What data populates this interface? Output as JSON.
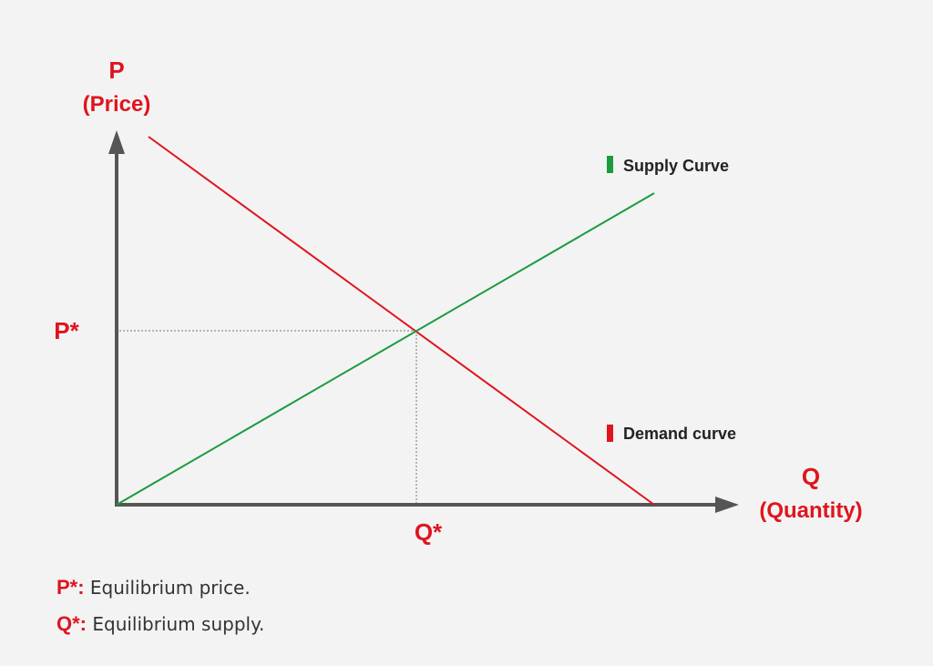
{
  "colors": {
    "accent_red": "#e0141e",
    "supply_green": "#1a9c3e",
    "axis_gray": "#555555",
    "text_dark": "#333333",
    "background": "#f3f3f3"
  },
  "axes": {
    "y_symbol": "P",
    "y_label": "(Price)",
    "x_symbol": "Q",
    "x_label": "(Quantity)"
  },
  "equilibrium": {
    "price_marker": "P*",
    "quantity_marker": "Q*"
  },
  "legend": {
    "supply": "Supply Curve",
    "demand": "Demand curve"
  },
  "footnotes": [
    {
      "key": "P*:",
      "text": " Equilibrium price."
    },
    {
      "key": "Q*:",
      "text": " Equilibrium supply."
    }
  ]
}
